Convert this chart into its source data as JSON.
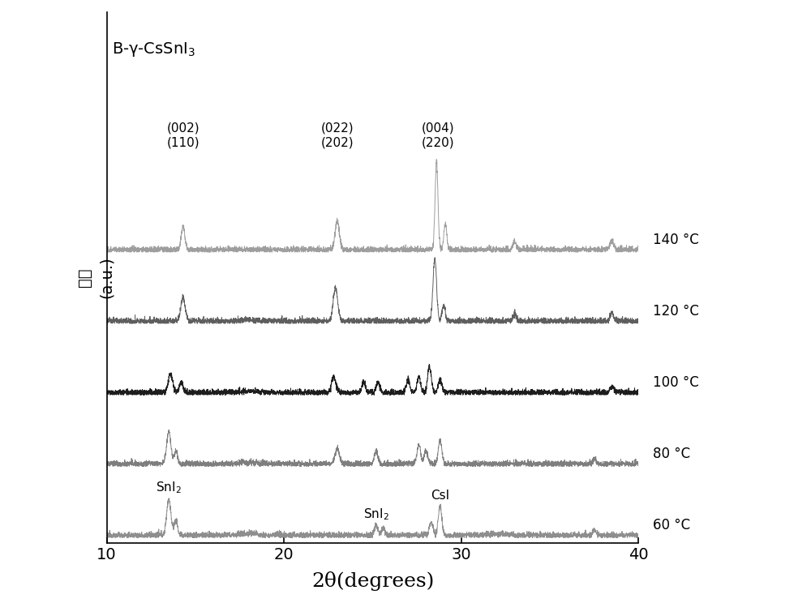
{
  "title": "B-γ-CsSnI₃",
  "xlabel": "2θ(degrees)",
  "ylabel_top": "(a.u.)",
  "ylabel_bottom": "强度",
  "xlim": [
    10,
    40
  ],
  "xticks": [
    10,
    20,
    30,
    40
  ],
  "temperatures": [
    "60 °C",
    "80 °C",
    "100 °C",
    "120 °C",
    "140 °C"
  ],
  "colors": [
    "#888888",
    "#777777",
    "#111111",
    "#555555",
    "#999999"
  ],
  "offsets": [
    0.0,
    0.55,
    1.1,
    1.65,
    2.2
  ],
  "noise_scale": 0.012,
  "background_color": "#ffffff"
}
